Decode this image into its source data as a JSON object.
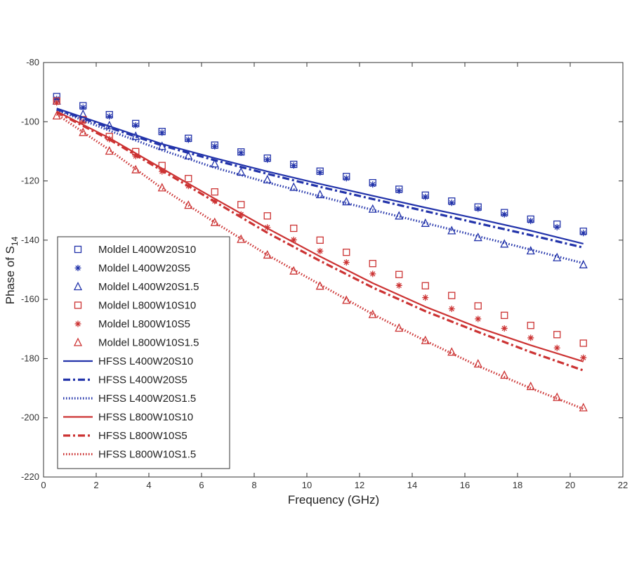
{
  "chart_data": {
    "type": "line",
    "title": "",
    "xlabel": "Frequency (GHz)",
    "ylabel": "Phase of S",
    "ylabel_subscript": "14",
    "xlim": [
      0,
      22
    ],
    "ylim": [
      -220,
      -80
    ],
    "xticks": [
      0,
      2,
      4,
      6,
      8,
      10,
      12,
      14,
      16,
      18,
      20,
      22
    ],
    "yticks": [
      -220,
      -200,
      -180,
      -160,
      -140,
      -120,
      -100,
      -80
    ],
    "grid": false,
    "legend_position": "left",
    "colors": {
      "blue": "#2233aa",
      "red": "#cc3333",
      "axis": "#333333"
    },
    "x_marker": [
      0.5,
      1.5,
      2.5,
      3.5,
      4.5,
      5.5,
      6.5,
      7.5,
      8.5,
      9.5,
      10.5,
      11.5,
      12.5,
      13.5,
      14.5,
      15.5,
      16.5,
      17.5,
      18.5,
      19.5,
      20.5
    ],
    "x_line": [
      0.5,
      2.5,
      4.5,
      6.5,
      8.5,
      10.5,
      12.5,
      14.5,
      16.5,
      18.5,
      20.5
    ],
    "series": [
      {
        "name": "Moldel L400W20S10",
        "kind": "marker",
        "marker": "square",
        "color": "blue",
        "values": [
          -91.5,
          -94.6,
          -97.6,
          -100.6,
          -103.3,
          -105.6,
          -107.9,
          -110.2,
          -112.3,
          -114.4,
          -116.7,
          -118.5,
          -120.6,
          -122.8,
          -124.8,
          -126.8,
          -128.8,
          -130.7,
          -132.9,
          -134.6,
          -137.0
        ]
      },
      {
        "name": "Moldel L400W20S5",
        "kind": "marker",
        "marker": "star",
        "color": "blue",
        "values": [
          -92.3,
          -95.2,
          -98.2,
          -101.2,
          -103.7,
          -106.1,
          -108.3,
          -110.5,
          -112.8,
          -114.8,
          -117.1,
          -119.1,
          -121.2,
          -123.3,
          -125.4,
          -127.4,
          -129.4,
          -131.3,
          -133.5,
          -135.6,
          -137.6
        ]
      },
      {
        "name": "Moldel L400W20S1.5",
        "kind": "marker",
        "marker": "triangle",
        "color": "blue",
        "values": [
          -93.0,
          -97.5,
          -101.3,
          -104.9,
          -108.3,
          -111.5,
          -114.2,
          -117.0,
          -119.6,
          -122.1,
          -124.6,
          -127.0,
          -129.5,
          -131.8,
          -134.3,
          -136.8,
          -139.1,
          -141.3,
          -143.6,
          -145.9,
          -148.3
        ]
      },
      {
        "name": "Moldel L800W10S10",
        "kind": "marker",
        "marker": "square",
        "color": "red",
        "values": [
          -93.0,
          -99.3,
          -105.0,
          -110.1,
          -114.8,
          -119.2,
          -123.7,
          -128.0,
          -131.8,
          -136.0,
          -140.0,
          -144.1,
          -147.9,
          -151.6,
          -155.4,
          -158.7,
          -162.2,
          -165.4,
          -168.8,
          -171.9,
          -174.8
        ]
      },
      {
        "name": "Moldel L800W10S5",
        "kind": "marker",
        "marker": "star",
        "color": "red",
        "values": [
          -93.5,
          -100.0,
          -105.9,
          -111.6,
          -116.8,
          -121.7,
          -126.8,
          -131.3,
          -135.7,
          -139.9,
          -143.7,
          -147.5,
          -151.4,
          -155.3,
          -159.4,
          -163.2,
          -166.6,
          -169.8,
          -173.0,
          -176.4,
          -179.7
        ]
      },
      {
        "name": "Moldel L800W10S1.5",
        "kind": "marker",
        "marker": "triangle",
        "color": "red",
        "values": [
          -98.0,
          -103.6,
          -109.9,
          -116.2,
          -122.3,
          -128.2,
          -134.0,
          -139.7,
          -145.0,
          -150.4,
          -155.5,
          -160.3,
          -165.1,
          -169.7,
          -173.9,
          -177.8,
          -181.8,
          -185.6,
          -189.4,
          -193.1,
          -196.6
        ]
      },
      {
        "name": "HFSS L400W20S10",
        "kind": "line",
        "dash": "solid",
        "color": "blue",
        "values": [
          -95.5,
          -101.5,
          -107.5,
          -112.3,
          -116.8,
          -121.0,
          -125.0,
          -129.0,
          -132.8,
          -136.8,
          -141.2
        ]
      },
      {
        "name": "HFSS L400W20S5",
        "kind": "line",
        "dash": "dashdot",
        "color": "blue",
        "values": [
          -95.8,
          -102.0,
          -108.0,
          -113.0,
          -117.6,
          -122.0,
          -126.1,
          -130.2,
          -134.3,
          -138.3,
          -142.5
        ]
      },
      {
        "name": "HFSS L400W20S1.5",
        "kind": "line",
        "dash": "dotted",
        "color": "blue",
        "values": [
          -96.0,
          -103.0,
          -109.6,
          -115.5,
          -120.5,
          -125.2,
          -129.8,
          -134.2,
          -138.7,
          -143.2,
          -147.8
        ]
      },
      {
        "name": "HFSS L800W10S10",
        "kind": "line",
        "dash": "solid",
        "color": "red",
        "values": [
          -96.5,
          -105.5,
          -115.8,
          -126.0,
          -136.0,
          -145.5,
          -154.5,
          -162.5,
          -169.5,
          -175.5,
          -181.0
        ]
      },
      {
        "name": "HFSS L800W10S5",
        "kind": "line",
        "dash": "dashdot",
        "color": "red",
        "values": [
          -96.8,
          -106.0,
          -116.5,
          -127.0,
          -137.5,
          -147.0,
          -156.0,
          -164.0,
          -171.0,
          -177.8,
          -184.0
        ]
      },
      {
        "name": "HFSS L800W10S1.5",
        "kind": "line",
        "dash": "dotted",
        "color": "red",
        "values": [
          -97.5,
          -109.5,
          -122.5,
          -134.0,
          -145.0,
          -155.0,
          -165.0,
          -174.0,
          -182.5,
          -190.0,
          -197.0
        ]
      }
    ]
  }
}
